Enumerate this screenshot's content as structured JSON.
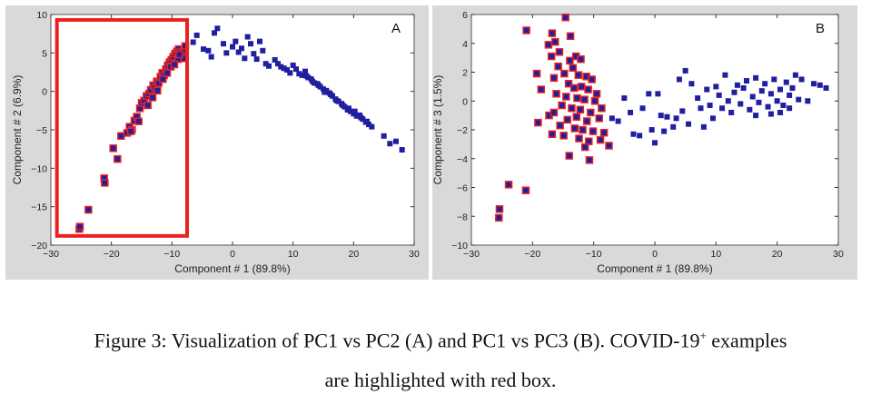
{
  "caption": {
    "line1_pre": "Figure 3: Visualization of PC1 vs PC2 (A) and PC1 vs PC3 (B). COVID-19",
    "line1_sup": "+",
    "line1_post": " examples",
    "line2": "are highlighted with red box."
  },
  "colors": {
    "point": "#1f1fa0",
    "highlight": "#e8231f",
    "panel_bg": "#d9d9d9",
    "plot_bg": "#ffffff"
  },
  "chart_data": [
    {
      "type": "scatter",
      "panel_label": "A",
      "xlabel": "Component # 1 (89.8%)",
      "ylabel": "Component # 2 (6.9%)",
      "xlim": [
        -30,
        30
      ],
      "ylim": [
        -20,
        10
      ],
      "xticks": [
        -30,
        -20,
        -10,
        0,
        10,
        20,
        30
      ],
      "yticks": [
        -20,
        -15,
        -10,
        -5,
        0,
        5,
        10
      ],
      "highlight_box": {
        "x": [
          -29,
          -7.5
        ],
        "y": [
          -18.8,
          9.3
        ]
      },
      "highlighted_points": [
        [
          -25.3,
          -17.9
        ],
        [
          -25.2,
          -17.6
        ],
        [
          -23.8,
          -15.4
        ],
        [
          -21.2,
          -11.3
        ],
        [
          -21.1,
          -11.9
        ],
        [
          -19.7,
          -7.4
        ],
        [
          -19,
          -8.8
        ],
        [
          -18.4,
          -5.8
        ],
        [
          -17.4,
          -5.4
        ],
        [
          -17,
          -4.6
        ],
        [
          -16.6,
          -5
        ],
        [
          -16.2,
          -3.8
        ],
        [
          -15.8,
          -3.3
        ],
        [
          -15.3,
          -2.2
        ],
        [
          -15,
          -1.5
        ],
        [
          -14.6,
          -1.2
        ],
        [
          -14.2,
          -0.6
        ],
        [
          -13.8,
          -0.3
        ],
        [
          -13.5,
          0.2
        ],
        [
          -13.1,
          0.8
        ],
        [
          -12.8,
          0.5
        ],
        [
          -12.5,
          1.3
        ],
        [
          -12.2,
          1.1
        ],
        [
          -11.9,
          1.9
        ],
        [
          -11.6,
          2.4
        ],
        [
          -11.3,
          2.1
        ],
        [
          -11,
          2.9
        ],
        [
          -10.7,
          3.4
        ],
        [
          -10.4,
          3.8
        ],
        [
          -10.1,
          4.1
        ],
        [
          -9.8,
          4.5
        ],
        [
          -9.5,
          4.9
        ],
        [
          -9.2,
          5.2
        ],
        [
          -8.9,
          5.5
        ],
        [
          -8.6,
          5.1
        ],
        [
          -8.3,
          4.7
        ],
        [
          -8,
          5.4
        ],
        [
          -7.8,
          5.9
        ],
        [
          -8.2,
          4.3
        ],
        [
          -9,
          4.2
        ],
        [
          -10.2,
          3.2
        ],
        [
          -11.5,
          1.6
        ],
        [
          -12.4,
          0.1
        ],
        [
          -13.2,
          -0.8
        ],
        [
          -14,
          -1.8
        ],
        [
          -15.5,
          -3.9
        ],
        [
          -16.8,
          -5.2
        ],
        [
          -9.6,
          3.5
        ],
        [
          -8.8,
          4.8
        ],
        [
          -10.8,
          2.4
        ]
      ],
      "points": [
        [
          -6.5,
          6.4
        ],
        [
          -5.9,
          7.3
        ],
        [
          -4.8,
          5.5
        ],
        [
          -4,
          5.3
        ],
        [
          -3.5,
          4.5
        ],
        [
          -3,
          7.6
        ],
        [
          -2.5,
          8.2
        ],
        [
          -1.5,
          6.2
        ],
        [
          -1,
          5
        ],
        [
          0,
          5.8
        ],
        [
          0.5,
          6.5
        ],
        [
          1,
          5.1
        ],
        [
          1.5,
          5.6
        ],
        [
          2,
          4.3
        ],
        [
          2.5,
          7.1
        ],
        [
          3,
          6.2
        ],
        [
          3.5,
          4.9
        ],
        [
          4,
          4.2
        ],
        [
          4.5,
          6.5
        ],
        [
          5,
          5.3
        ],
        [
          5.5,
          3.6
        ],
        [
          6,
          3.3
        ],
        [
          7,
          4.1
        ],
        [
          7.5,
          3.6
        ],
        [
          8,
          3.2
        ],
        [
          9,
          2.8
        ],
        [
          9.5,
          2.4
        ],
        [
          10,
          3.4
        ],
        [
          11,
          2.3
        ],
        [
          11.5,
          2.1
        ],
        [
          12,
          2.6
        ],
        [
          12.5,
          1.8
        ],
        [
          13,
          1.6
        ],
        [
          13.5,
          1.1
        ],
        [
          14,
          1
        ],
        [
          14.5,
          0.6
        ],
        [
          15,
          0.3
        ],
        [
          15.5,
          0.1
        ],
        [
          16,
          -0.2
        ],
        [
          16.5,
          -0.6
        ],
        [
          17,
          -1
        ],
        [
          17.5,
          -1.3
        ],
        [
          18,
          -1.6
        ],
        [
          18.5,
          -2
        ],
        [
          19,
          -2.4
        ],
        [
          19.5,
          -2.6
        ],
        [
          20,
          -2.9
        ],
        [
          20.5,
          -3.2
        ],
        [
          21,
          -3.1
        ],
        [
          21.5,
          -3.6
        ],
        [
          22,
          -4
        ],
        [
          22.5,
          -4.3
        ],
        [
          23,
          -4.6
        ],
        [
          25,
          -5.8
        ],
        [
          26,
          -6.8
        ],
        [
          27,
          -6.5
        ],
        [
          28,
          -7.6
        ],
        [
          15.2,
          -0.1
        ],
        [
          16.2,
          -0.4
        ],
        [
          17.2,
          -1.2
        ],
        [
          18.2,
          -1.8
        ],
        [
          19.2,
          -2.2
        ],
        [
          20.2,
          -2.6
        ],
        [
          21.2,
          -3.4
        ],
        [
          22.2,
          -3.9
        ],
        [
          13.2,
          1.3
        ],
        [
          14.2,
          0.8
        ],
        [
          12.2,
          2
        ],
        [
          10.5,
          2.9
        ],
        [
          8.5,
          3
        ]
      ]
    },
    {
      "type": "scatter",
      "panel_label": "B",
      "xlabel": "Component # 1 (89.8%)",
      "ylabel": "Component # 3 (1.5%)",
      "xlim": [
        -30,
        30
      ],
      "ylim": [
        -10,
        6
      ],
      "xticks": [
        -30,
        -20,
        -10,
        0,
        10,
        20,
        30
      ],
      "yticks": [
        -10,
        -8,
        -6,
        -4,
        -2,
        0,
        2,
        4,
        6
      ],
      "highlighted_points": [
        [
          -14.6,
          5.8
        ],
        [
          -21,
          4.9
        ],
        [
          -16.8,
          4.7
        ],
        [
          -16.3,
          4.1
        ],
        [
          -13.8,
          4.5
        ],
        [
          -17.4,
          3.9
        ],
        [
          -15.6,
          3.4
        ],
        [
          -16.9,
          3.1
        ],
        [
          -12.9,
          3.1
        ],
        [
          -12.1,
          2.9
        ],
        [
          -15.8,
          2.4
        ],
        [
          -13.4,
          2.3
        ],
        [
          -19.3,
          1.9
        ],
        [
          -16.5,
          1.6
        ],
        [
          -14.8,
          1.9
        ],
        [
          -12.5,
          1.8
        ],
        [
          -11.2,
          1.7
        ],
        [
          -10.3,
          1.5
        ],
        [
          -14.1,
          1.2
        ],
        [
          -13.2,
          0.9
        ],
        [
          -12,
          1
        ],
        [
          -10.9,
          0.8
        ],
        [
          -18.6,
          0.8
        ],
        [
          -16.1,
          0.5
        ],
        [
          -14.5,
          0.3
        ],
        [
          -12.7,
          0.2
        ],
        [
          -11.5,
          0.1
        ],
        [
          -9.8,
          0
        ],
        [
          -15.2,
          -0.3
        ],
        [
          -13.6,
          -0.5
        ],
        [
          -12.2,
          -0.6
        ],
        [
          -10.5,
          -0.8
        ],
        [
          -17.3,
          -1
        ],
        [
          -14.3,
          -1.3
        ],
        [
          -12.8,
          -1.1
        ],
        [
          -11.1,
          -1.4
        ],
        [
          -9.1,
          -1.2
        ],
        [
          -19.1,
          -1.5
        ],
        [
          -15.5,
          -1.7
        ],
        [
          -13.1,
          -1.9
        ],
        [
          -11.8,
          -2
        ],
        [
          -10.1,
          -2.1
        ],
        [
          -8.3,
          -2.2
        ],
        [
          -16.8,
          -2.3
        ],
        [
          -14.9,
          -2.4
        ],
        [
          -12.4,
          -2.6
        ],
        [
          -10.8,
          -2.8
        ],
        [
          -8.9,
          -2.7
        ],
        [
          -11.4,
          -3.2
        ],
        [
          -7.5,
          -3.1
        ],
        [
          -14,
          -3.8
        ],
        [
          -10.7,
          -4.1
        ],
        [
          -23.9,
          -5.8
        ],
        [
          -21.1,
          -6.2
        ],
        [
          -25.4,
          -7.5
        ],
        [
          -25.5,
          -8.1
        ],
        [
          -9.5,
          0.5
        ],
        [
          -8.7,
          -0.5
        ],
        [
          -16.5,
          -0.8
        ],
        [
          -13.9,
          2.8
        ]
      ],
      "points": [
        [
          -7,
          -1.2
        ],
        [
          -6,
          -1.4
        ],
        [
          -5,
          0.2
        ],
        [
          -4,
          -0.8
        ],
        [
          -3.5,
          -2.3
        ],
        [
          -2.5,
          -2.4
        ],
        [
          -2,
          -0.5
        ],
        [
          -1,
          0.5
        ],
        [
          -0.5,
          -2
        ],
        [
          0,
          -2.9
        ],
        [
          0.5,
          0.5
        ],
        [
          1,
          -1
        ],
        [
          1.5,
          -2.1
        ],
        [
          2,
          -1.1
        ],
        [
          3,
          -1.8
        ],
        [
          3.5,
          -1.2
        ],
        [
          4,
          1.5
        ],
        [
          4.5,
          -0.7
        ],
        [
          5,
          2.1
        ],
        [
          5.5,
          -1.6
        ],
        [
          6,
          1.2
        ],
        [
          7,
          0.2
        ],
        [
          7.5,
          -0.5
        ],
        [
          8,
          -1.8
        ],
        [
          8.5,
          0.8
        ],
        [
          9,
          -0.3
        ],
        [
          9.5,
          -1.2
        ],
        [
          10,
          1
        ],
        [
          10.5,
          0.4
        ],
        [
          11,
          -0.5
        ],
        [
          11.5,
          1.8
        ],
        [
          12,
          0
        ],
        [
          12.5,
          -0.8
        ],
        [
          13,
          0.6
        ],
        [
          13.5,
          1.1
        ],
        [
          14,
          -0.2
        ],
        [
          14.5,
          0.9
        ],
        [
          15,
          1.4
        ],
        [
          15.5,
          -0.6
        ],
        [
          16,
          0.3
        ],
        [
          16.5,
          1.6
        ],
        [
          17,
          -0.1
        ],
        [
          17.5,
          0.7
        ],
        [
          18,
          1.2
        ],
        [
          18.5,
          -0.4
        ],
        [
          19,
          0.5
        ],
        [
          19.5,
          1.5
        ],
        [
          20,
          0
        ],
        [
          20.5,
          0.8
        ],
        [
          21,
          -0.3
        ],
        [
          21.5,
          1.3
        ],
        [
          22,
          0.4
        ],
        [
          22.5,
          0.9
        ],
        [
          23,
          1.8
        ],
        [
          23.5,
          0.1
        ],
        [
          24,
          1.5
        ],
        [
          25,
          0
        ],
        [
          26,
          1.2
        ],
        [
          27,
          1.1
        ],
        [
          28,
          0.9
        ],
        [
          16.5,
          -1
        ],
        [
          19,
          -0.9
        ],
        [
          20.5,
          -0.8
        ],
        [
          22,
          -0.5
        ]
      ]
    }
  ]
}
